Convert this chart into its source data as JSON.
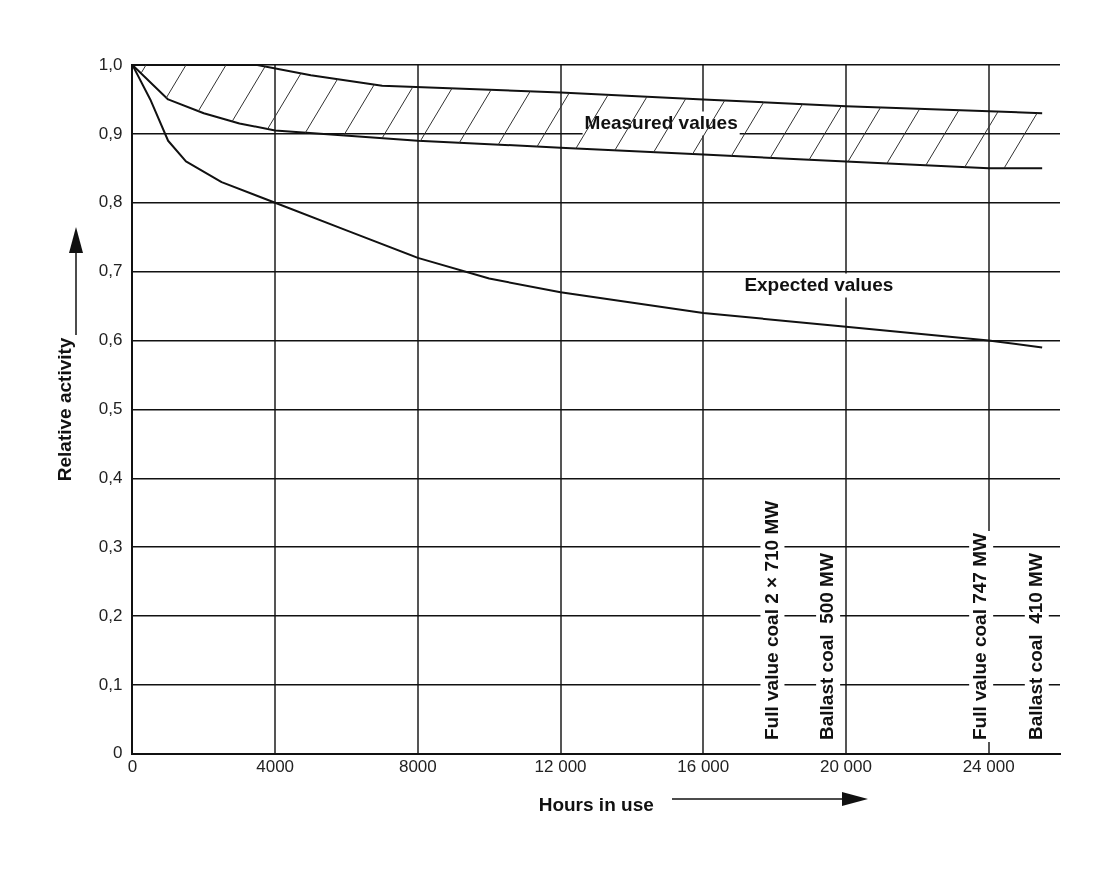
{
  "chart_data": {
    "type": "line",
    "xlabel": "Hours in use",
    "ylabel": "Relative activity",
    "xlim": [
      0,
      26000
    ],
    "xticks": [
      0,
      4000,
      8000,
      {
        "value": 12000,
        "label": "12 000"
      },
      {
        "value": 16000,
        "label": "16 000"
      },
      {
        "value": 20000,
        "label": "20 000"
      },
      {
        "value": 24000,
        "label": "24 000"
      }
    ],
    "ylim": [
      0,
      1
    ],
    "yticks": [
      0,
      {
        "value": 0.1,
        "label": "0,1"
      },
      {
        "value": 0.2,
        "label": "0,2"
      },
      {
        "value": 0.3,
        "label": "0,3"
      },
      {
        "value": 0.4,
        "label": "0,4"
      },
      {
        "value": 0.5,
        "label": "0,5"
      },
      {
        "value": 0.6,
        "label": "0,6"
      },
      {
        "value": 0.7,
        "label": "0,7"
      },
      {
        "value": 0.8,
        "label": "0,8"
      },
      {
        "value": 0.9,
        "label": "0,9"
      },
      {
        "value": 1,
        "label": "1,0"
      }
    ],
    "grid": true,
    "legend": false,
    "marker": "none",
    "line_style": "solid",
    "series": [
      {
        "color": "#111111",
        "x": [
          0,
          3500,
          5000,
          7000,
          12000,
          16000,
          20000,
          25500
        ],
        "values": [
          1.0,
          1.0,
          0.985,
          0.97,
          0.96,
          0.95,
          0.94,
          0.93
        ]
      },
      {
        "color": "#111111",
        "x": [
          0,
          1000,
          2000,
          3000,
          4000,
          8000,
          12000,
          16000,
          20000,
          24000,
          25500
        ],
        "values": [
          1.0,
          0.95,
          0.93,
          0.915,
          0.905,
          0.89,
          0.88,
          0.87,
          0.86,
          0.85,
          0.85
        ]
      },
      {
        "color": "#111111",
        "x": [
          0,
          500,
          1000,
          1500,
          2500,
          4000,
          6000,
          8000,
          10000,
          12000,
          16000,
          20000,
          24000,
          25500
        ],
        "values": [
          1.0,
          0.95,
          0.89,
          0.86,
          0.83,
          0.8,
          0.76,
          0.72,
          0.69,
          0.67,
          0.64,
          0.62,
          0.6,
          0.59
        ]
      }
    ],
    "annotations": [
      "Measured values",
      "Expected values",
      "Full value coal 2 × 710 MW",
      "Ballast coal  500 MW",
      "Full value coal 747 MW",
      "Ballast coal  410 MW"
    ]
  }
}
